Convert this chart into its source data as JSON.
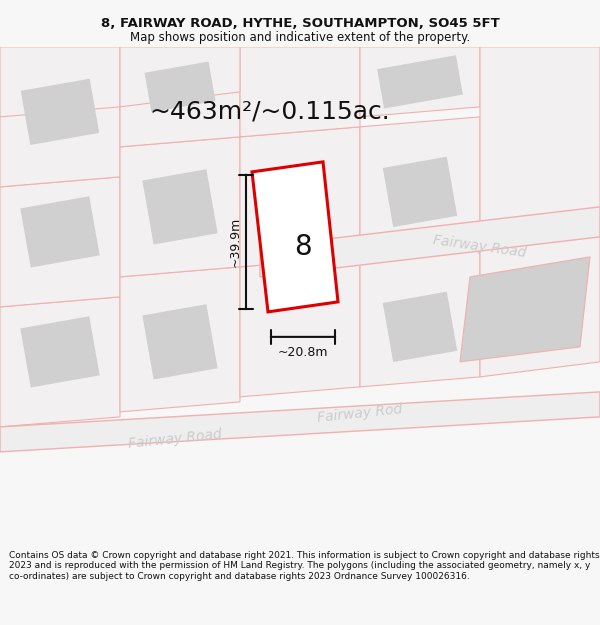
{
  "title_line1": "8, FAIRWAY ROAD, HYTHE, SOUTHAMPTON, SO45 5FT",
  "title_line2": "Map shows position and indicative extent of the property.",
  "area_label": "~463m²/~0.115ac.",
  "number_label": "8",
  "dim_width": "~20.8m",
  "dim_height": "~39.9m",
  "road_label_lower": "Fairway Road",
  "road_label_upper": "Fairway Road",
  "footer_text": "Contains OS data © Crown copyright and database right 2021. This information is subject to Crown copyright and database rights 2023 and is reproduced with the permission of HM Land Registry. The polygons (including the associated geometry, namely x, y co-ordinates) are subject to Crown copyright and database rights 2023 Ordnance Survey 100026316.",
  "bg_color": "#f7f7f7",
  "map_bg": "#f2f0f0",
  "plot_fill": "#ffffff",
  "plot_border": "#dd0000",
  "building_fill": "#d0d0d0",
  "road_fill": "#eeeeee",
  "parcel_edge": "#f0b0b0",
  "road_edge": "#f0b0b0",
  "dim_color": "#111111",
  "text_color": "#111111",
  "road_text_color": "#cccccc",
  "title_fontsize": 9.5,
  "subtitle_fontsize": 8.5,
  "area_fontsize": 18,
  "number_fontsize": 20,
  "dim_fontsize": 9,
  "road_fontsize": 10,
  "footer_fontsize": 6.5
}
